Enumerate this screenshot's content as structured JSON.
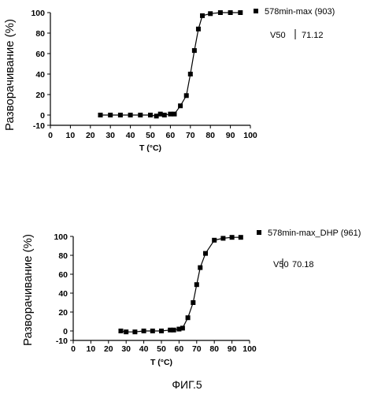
{
  "figure_caption": "ФИГ.5",
  "chart_data": [
    {
      "type": "scatter",
      "xlabel": "T (°C)",
      "ylabel": "Разворачивание  (%)",
      "xlim": [
        0,
        100
      ],
      "ylim": [
        -10,
        100
      ],
      "x_ticks": [
        0,
        10,
        20,
        30,
        40,
        50,
        60,
        70,
        80,
        90,
        100
      ],
      "y_ticks": [
        -10,
        0,
        20,
        40,
        60,
        80,
        100
      ],
      "legend": "578min-max (903)",
      "v50_label": "V50",
      "v50_value": "71.12",
      "legend_position": "top-right",
      "grid": false,
      "series": [
        {
          "name": "578min-max (903)",
          "x": [
            25,
            30,
            35,
            40,
            45,
            50,
            53,
            55,
            57,
            60,
            62,
            65,
            68,
            70,
            72,
            74,
            76,
            80,
            85,
            90,
            95
          ],
          "y": [
            0,
            0,
            0,
            0,
            0,
            0,
            -1,
            1,
            0,
            1,
            1,
            9,
            19,
            40,
            63,
            84,
            97,
            99,
            100,
            100,
            100
          ]
        }
      ]
    },
    {
      "type": "scatter",
      "xlabel": "T (°C)",
      "ylabel": "Разворачивание  (%)",
      "xlim": [
        0,
        100
      ],
      "ylim": [
        -10,
        100
      ],
      "x_ticks": [
        0,
        10,
        20,
        30,
        40,
        50,
        60,
        70,
        80,
        90,
        100
      ],
      "y_ticks": [
        -10,
        0,
        20,
        40,
        60,
        80,
        100
      ],
      "legend": "578min-max_DHP (961)",
      "v50_label": "V50",
      "v50_value": "70.18",
      "legend_position": "top-right",
      "grid": false,
      "series": [
        {
          "name": "578min-max_DHP (961)",
          "x": [
            27,
            30,
            35,
            40,
            45,
            50,
            55,
            57,
            60,
            62,
            65,
            68,
            70,
            72,
            75,
            80,
            85,
            90,
            95
          ],
          "y": [
            0,
            -1,
            -1,
            0,
            0,
            0,
            1,
            1,
            2,
            3,
            14,
            30,
            49,
            67,
            82,
            96,
            98,
            99,
            99
          ]
        }
      ]
    }
  ]
}
